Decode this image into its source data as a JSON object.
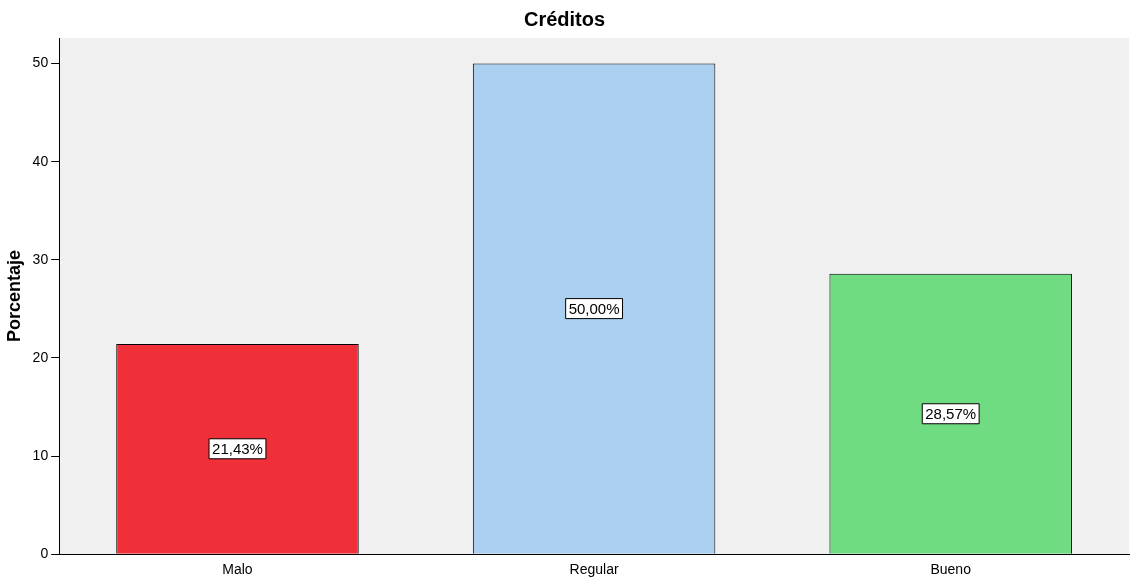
{
  "chart_data": {
    "type": "bar",
    "title": "Créditos",
    "ylabel": "Porcentaje",
    "categories": [
      "Malo",
      "Regular",
      "Bueno"
    ],
    "values": [
      21.43,
      50.0,
      28.57
    ],
    "colors": [
      "#ef3038",
      "#abcfee",
      "#70dc82"
    ],
    "value_labels": [
      "21,43%",
      "50,00%",
      "28,57%"
    ],
    "ylim": [
      0,
      52.6
    ],
    "yticks": [
      0,
      10,
      20,
      30,
      40,
      50
    ],
    "grid": false,
    "legend": false
  }
}
